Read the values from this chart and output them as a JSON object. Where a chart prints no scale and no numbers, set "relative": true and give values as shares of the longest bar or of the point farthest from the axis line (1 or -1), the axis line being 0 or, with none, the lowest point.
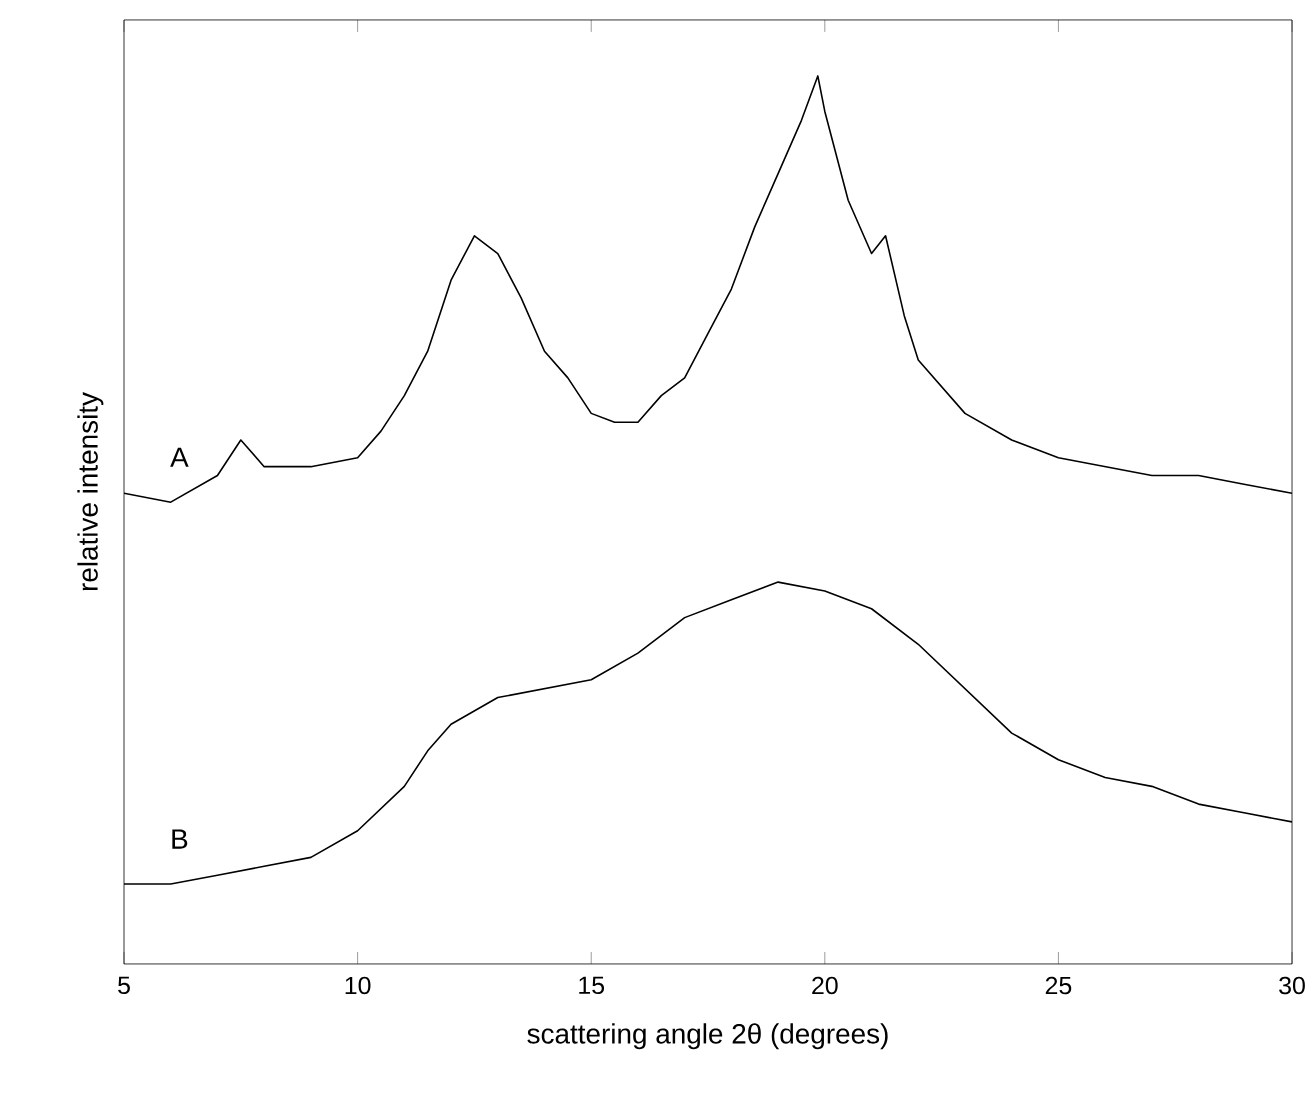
{
  "chart_data": {
    "type": "line",
    "xlabel": "scattering angle 2θ (degrees)",
    "ylabel": "relative intensity",
    "relative": true,
    "xlim": [
      5,
      30
    ],
    "xticks": [
      5,
      10,
      15,
      20,
      25,
      30
    ],
    "tick_labels": "x",
    "grid": false,
    "legend": false,
    "marker": "none",
    "line_style": "solid",
    "series": [
      {
        "name": "A",
        "color": "#000000",
        "x": [
          5,
          6,
          7,
          7.5,
          8,
          9,
          10,
          10.5,
          11,
          11.5,
          12,
          12.5,
          13,
          13.5,
          14,
          14.5,
          15,
          15.5,
          16,
          16.5,
          17,
          17.5,
          18,
          18.5,
          19,
          19.5,
          19.85,
          20,
          20.5,
          21,
          21.3,
          21.7,
          22,
          23,
          24,
          25,
          26,
          27,
          28,
          29,
          30
        ],
        "values": [
          0.53,
          0.52,
          0.55,
          0.59,
          0.56,
          0.56,
          0.57,
          0.6,
          0.64,
          0.69,
          0.77,
          0.82,
          0.8,
          0.75,
          0.69,
          0.66,
          0.62,
          0.61,
          0.61,
          0.64,
          0.66,
          0.71,
          0.76,
          0.83,
          0.89,
          0.95,
          1.0,
          0.96,
          0.86,
          0.8,
          0.82,
          0.73,
          0.68,
          0.62,
          0.59,
          0.57,
          0.56,
          0.55,
          0.55,
          0.54,
          0.53
        ]
      },
      {
        "name": "B",
        "color": "#000000",
        "x": [
          5,
          6,
          7,
          8,
          9,
          10,
          11,
          11.5,
          12,
          13,
          14,
          15,
          16,
          17,
          18,
          19,
          20,
          21,
          22,
          23,
          24,
          25,
          26,
          27,
          28,
          29,
          30
        ],
        "values": [
          0.09,
          0.09,
          0.1,
          0.11,
          0.12,
          0.15,
          0.2,
          0.24,
          0.27,
          0.3,
          0.31,
          0.32,
          0.35,
          0.39,
          0.41,
          0.43,
          0.42,
          0.4,
          0.36,
          0.31,
          0.26,
          0.23,
          0.21,
          0.2,
          0.18,
          0.17,
          0.16
        ]
      }
    ]
  }
}
